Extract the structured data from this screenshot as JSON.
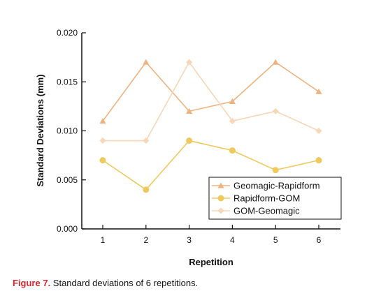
{
  "chart_data": {
    "type": "line",
    "x": [
      1,
      2,
      3,
      4,
      5,
      6
    ],
    "series": [
      {
        "name": "Geomagic-Rapidform",
        "values": [
          0.011,
          0.017,
          0.012,
          0.013,
          0.017,
          0.014
        ],
        "color": "#f0b27e",
        "marker": "triangle"
      },
      {
        "name": "Rapidform-GOM",
        "values": [
          0.007,
          0.004,
          0.009,
          0.008,
          0.006,
          0.007
        ],
        "color": "#f0c95e",
        "marker": "circle"
      },
      {
        "name": "GOM-Geomagic",
        "values": [
          0.009,
          0.009,
          0.017,
          0.011,
          0.012,
          0.01
        ],
        "color": "#f8d6b6",
        "marker": "diamond"
      }
    ],
    "xlabel": "Repetition",
    "ylabel": "Standard Deviations (mm)",
    "ylim": [
      0,
      0.02
    ],
    "yticks": [
      "0.000",
      "0.005",
      "0.010",
      "0.015",
      "0.020"
    ],
    "xticks": [
      "1",
      "2",
      "3",
      "4",
      "5",
      "6"
    ],
    "grid": false,
    "legend_position": "bottom-right"
  },
  "caption": {
    "label": "Figure 7.",
    "text": " Standard deviations of 6 repetitions."
  }
}
